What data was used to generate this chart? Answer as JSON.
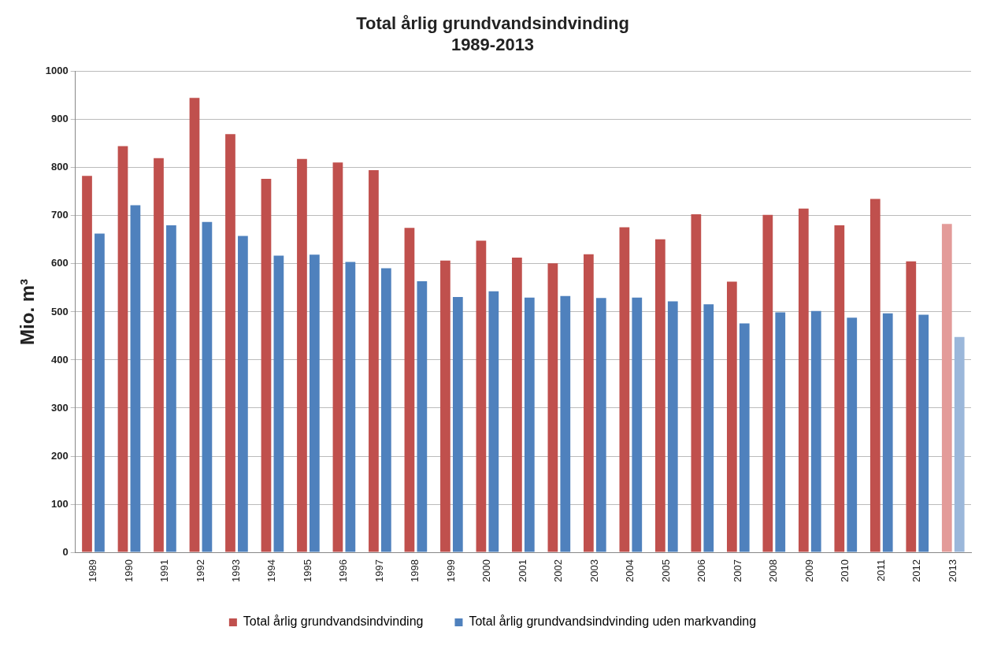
{
  "chart_data": {
    "type": "bar",
    "title": "Total årlig grundvandsindvinding\n1989-2013",
    "ylabel": "Mio. m³",
    "categories": [
      "1989",
      "1990",
      "1991",
      "1992",
      "1993",
      "1994",
      "1995",
      "1996",
      "1997",
      "1998",
      "1999",
      "2000",
      "2001",
      "2002",
      "2003",
      "2004",
      "2005",
      "2006",
      "2007",
      "2008",
      "2009",
      "2010",
      "2011",
      "2012",
      "2013"
    ],
    "series": [
      {
        "name": "Total årlig grundvandsindvinding",
        "color": "#c0504d",
        "colors": [
          "#c0504d",
          "#c0504d",
          "#c0504d",
          "#c0504d",
          "#c0504d",
          "#c0504d",
          "#c0504d",
          "#c0504d",
          "#c0504d",
          "#c0504d",
          "#c0504d",
          "#c0504d",
          "#c0504d",
          "#c0504d",
          "#c0504d",
          "#c0504d",
          "#c0504d",
          "#c0504d",
          "#c0504d",
          "#c0504d",
          "#c0504d",
          "#c0504d",
          "#c0504d",
          "#c0504d",
          "#e39b99"
        ],
        "values": [
          783,
          845,
          820,
          945,
          870,
          777,
          818,
          811,
          795,
          675,
          607,
          648,
          613,
          601,
          620,
          676,
          651,
          703,
          563,
          702,
          715,
          680,
          735,
          605,
          683
        ]
      },
      {
        "name": "Total årlig grundvandsindvinding uden markvanding",
        "color": "#4f81bd",
        "colors": [
          "#4f81bd",
          "#4f81bd",
          "#4f81bd",
          "#4f81bd",
          "#4f81bd",
          "#4f81bd",
          "#4f81bd",
          "#4f81bd",
          "#4f81bd",
          "#4f81bd",
          "#4f81bd",
          "#4f81bd",
          "#4f81bd",
          "#4f81bd",
          "#4f81bd",
          "#4f81bd",
          "#4f81bd",
          "#4f81bd",
          "#4f81bd",
          "#4f81bd",
          "#4f81bd",
          "#4f81bd",
          "#4f81bd",
          "#4f81bd",
          "#9bb7da"
        ],
        "values": [
          663,
          722,
          680,
          687,
          658,
          617,
          619,
          604,
          591,
          564,
          531,
          543,
          530,
          533,
          529,
          530,
          522,
          516,
          476,
          499,
          502,
          488,
          497,
          494,
          448
        ]
      }
    ],
    "ylim": [
      0,
      1000
    ],
    "yticks": [
      0,
      100,
      200,
      300,
      400,
      500,
      600,
      700,
      800,
      900,
      1000
    ],
    "grid": "y",
    "legend": "bottom"
  }
}
